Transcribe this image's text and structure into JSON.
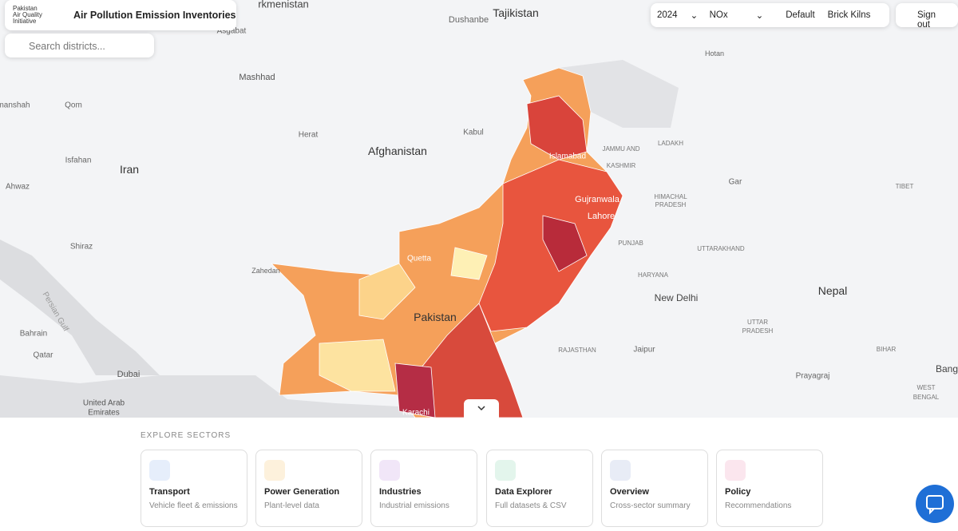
{
  "header": {
    "logo_lines": [
      "Pakistan",
      "Air Quality",
      "Initiative"
    ],
    "title": "Air Pollution Emission Inventories"
  },
  "search": {
    "placeholder": "Search districts..."
  },
  "toolbar": {
    "year": "2024",
    "pollutant": "NOx",
    "layer": "Default",
    "sector": "Brick Kilns",
    "sign_out": "Sign out"
  },
  "map_labels": [
    "rkmenistan",
    "Tajikistan",
    "Dushanbe",
    "Asgabat",
    "Mashhad",
    "manshah",
    "Qom",
    "Hotan",
    "Herat",
    "Kabul",
    "Afghanistan",
    "Iran",
    "Isfahan",
    "Ahwaz",
    "Shiraz",
    "Islamabad",
    "JAMMU AND",
    "KASHMIR",
    "LADAKH",
    "Gar",
    "Gujranwala",
    "Lahore",
    "HIMACHAL",
    "PRADESH",
    "TIBET",
    "Quetta",
    "PUNJAB",
    "UTTARAKHAND",
    "Zahedan",
    "HARYANA",
    "New Delhi",
    "Nepal",
    "Pakistan",
    "Bahrain",
    "Qatar",
    "Dubai",
    "RAJASTHAN",
    "Jaipur",
    "UTTAR",
    "PRADESH",
    "BIHAR",
    "Prayagraj",
    "Bang",
    "WEST",
    "BENGAL",
    "United Arab",
    "Emirates",
    "Karachi",
    "Persian Gulf"
  ],
  "sectors": {
    "heading": "EXPLORE SECTORS",
    "cards": [
      {
        "title": "Transport",
        "subtitle": "Vehicle fleet & emissions"
      },
      {
        "title": "Power Generation",
        "subtitle": "Plant-level data"
      },
      {
        "title": "Industries",
        "subtitle": "Industrial emissions"
      },
      {
        "title": "Data Explorer",
        "subtitle": "Full datasets & CSV"
      },
      {
        "title": "Overview",
        "subtitle": "Cross-sector summary"
      },
      {
        "title": "Policy",
        "subtitle": "Recommendations"
      }
    ]
  }
}
